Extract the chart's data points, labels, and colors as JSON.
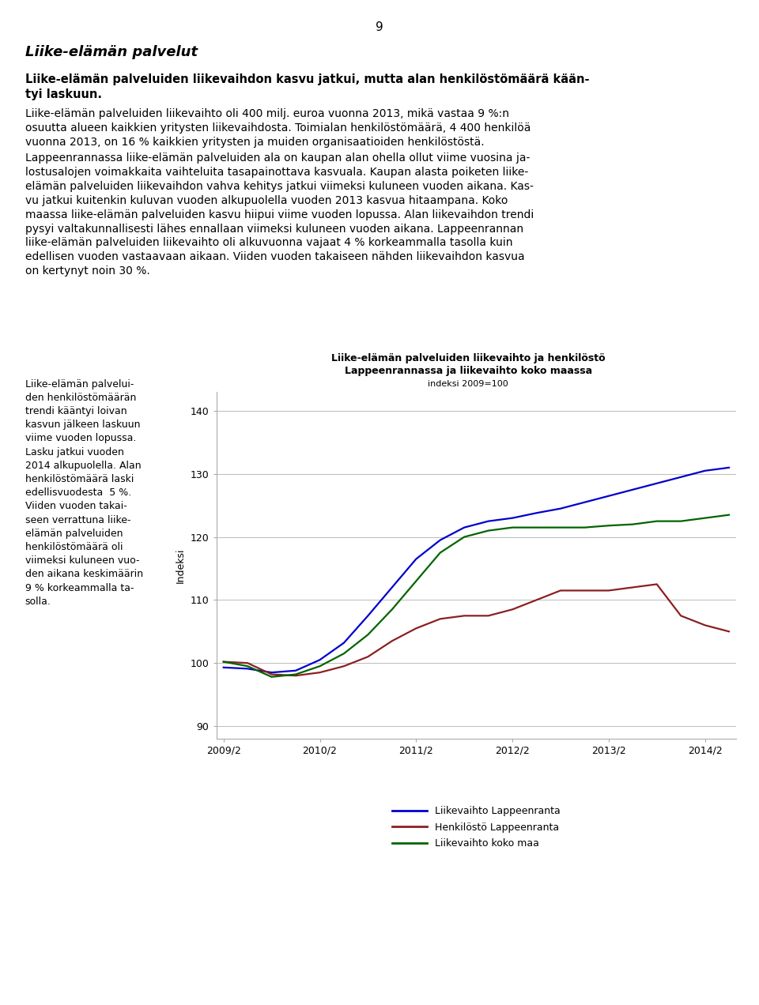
{
  "page_number": "9",
  "title_line1": "Liike-elämän palveluiden liikevaihto ja henkilöstö",
  "title_line2": "Lappeenrannassa ja liikevaihto koko maassa",
  "title_line3": "indeksi 2009=100",
  "ylabel": "Indeksi",
  "ylim": [
    88,
    143
  ],
  "yticks": [
    90,
    100,
    110,
    120,
    130,
    140
  ],
  "heading1": "Liike-elämän palvelut",
  "liikevaihto_lappeenranta": [
    99.3,
    99.1,
    98.5,
    98.8,
    100.5,
    103.2,
    107.5,
    112.0,
    116.5,
    119.5,
    121.5,
    122.5,
    123.0,
    123.8,
    124.5,
    125.5,
    126.5,
    127.5,
    128.5,
    129.5,
    130.5,
    131.0
  ],
  "henkilosto_lappeenranta": [
    100.2,
    100.0,
    98.2,
    98.0,
    98.5,
    99.5,
    101.0,
    103.5,
    105.5,
    107.0,
    107.5,
    107.5,
    108.5,
    110.0,
    111.5,
    111.5,
    111.5,
    112.0,
    112.5,
    107.5,
    106.0,
    105.0
  ],
  "liikevaihto_koko_maa": [
    100.2,
    99.5,
    97.8,
    98.2,
    99.5,
    101.5,
    104.5,
    108.5,
    113.0,
    117.5,
    120.0,
    121.0,
    121.5,
    121.5,
    121.5,
    121.5,
    121.8,
    122.0,
    122.5,
    122.5,
    123.0,
    123.5
  ],
  "color_blue": "#0000CC",
  "color_red": "#8B2020",
  "color_green": "#006400",
  "legend_labels": [
    "Liikevaihto Lappeenranta",
    "Henkilöstö Lappeenranta",
    "Liikevaihto koko maa"
  ],
  "xtick_positions": [
    0,
    4,
    8,
    12,
    16,
    20
  ],
  "xtick_labels": [
    "2009/2",
    "2010/2",
    "2011/2",
    "2012/2",
    "2013/2",
    "2014/2"
  ]
}
